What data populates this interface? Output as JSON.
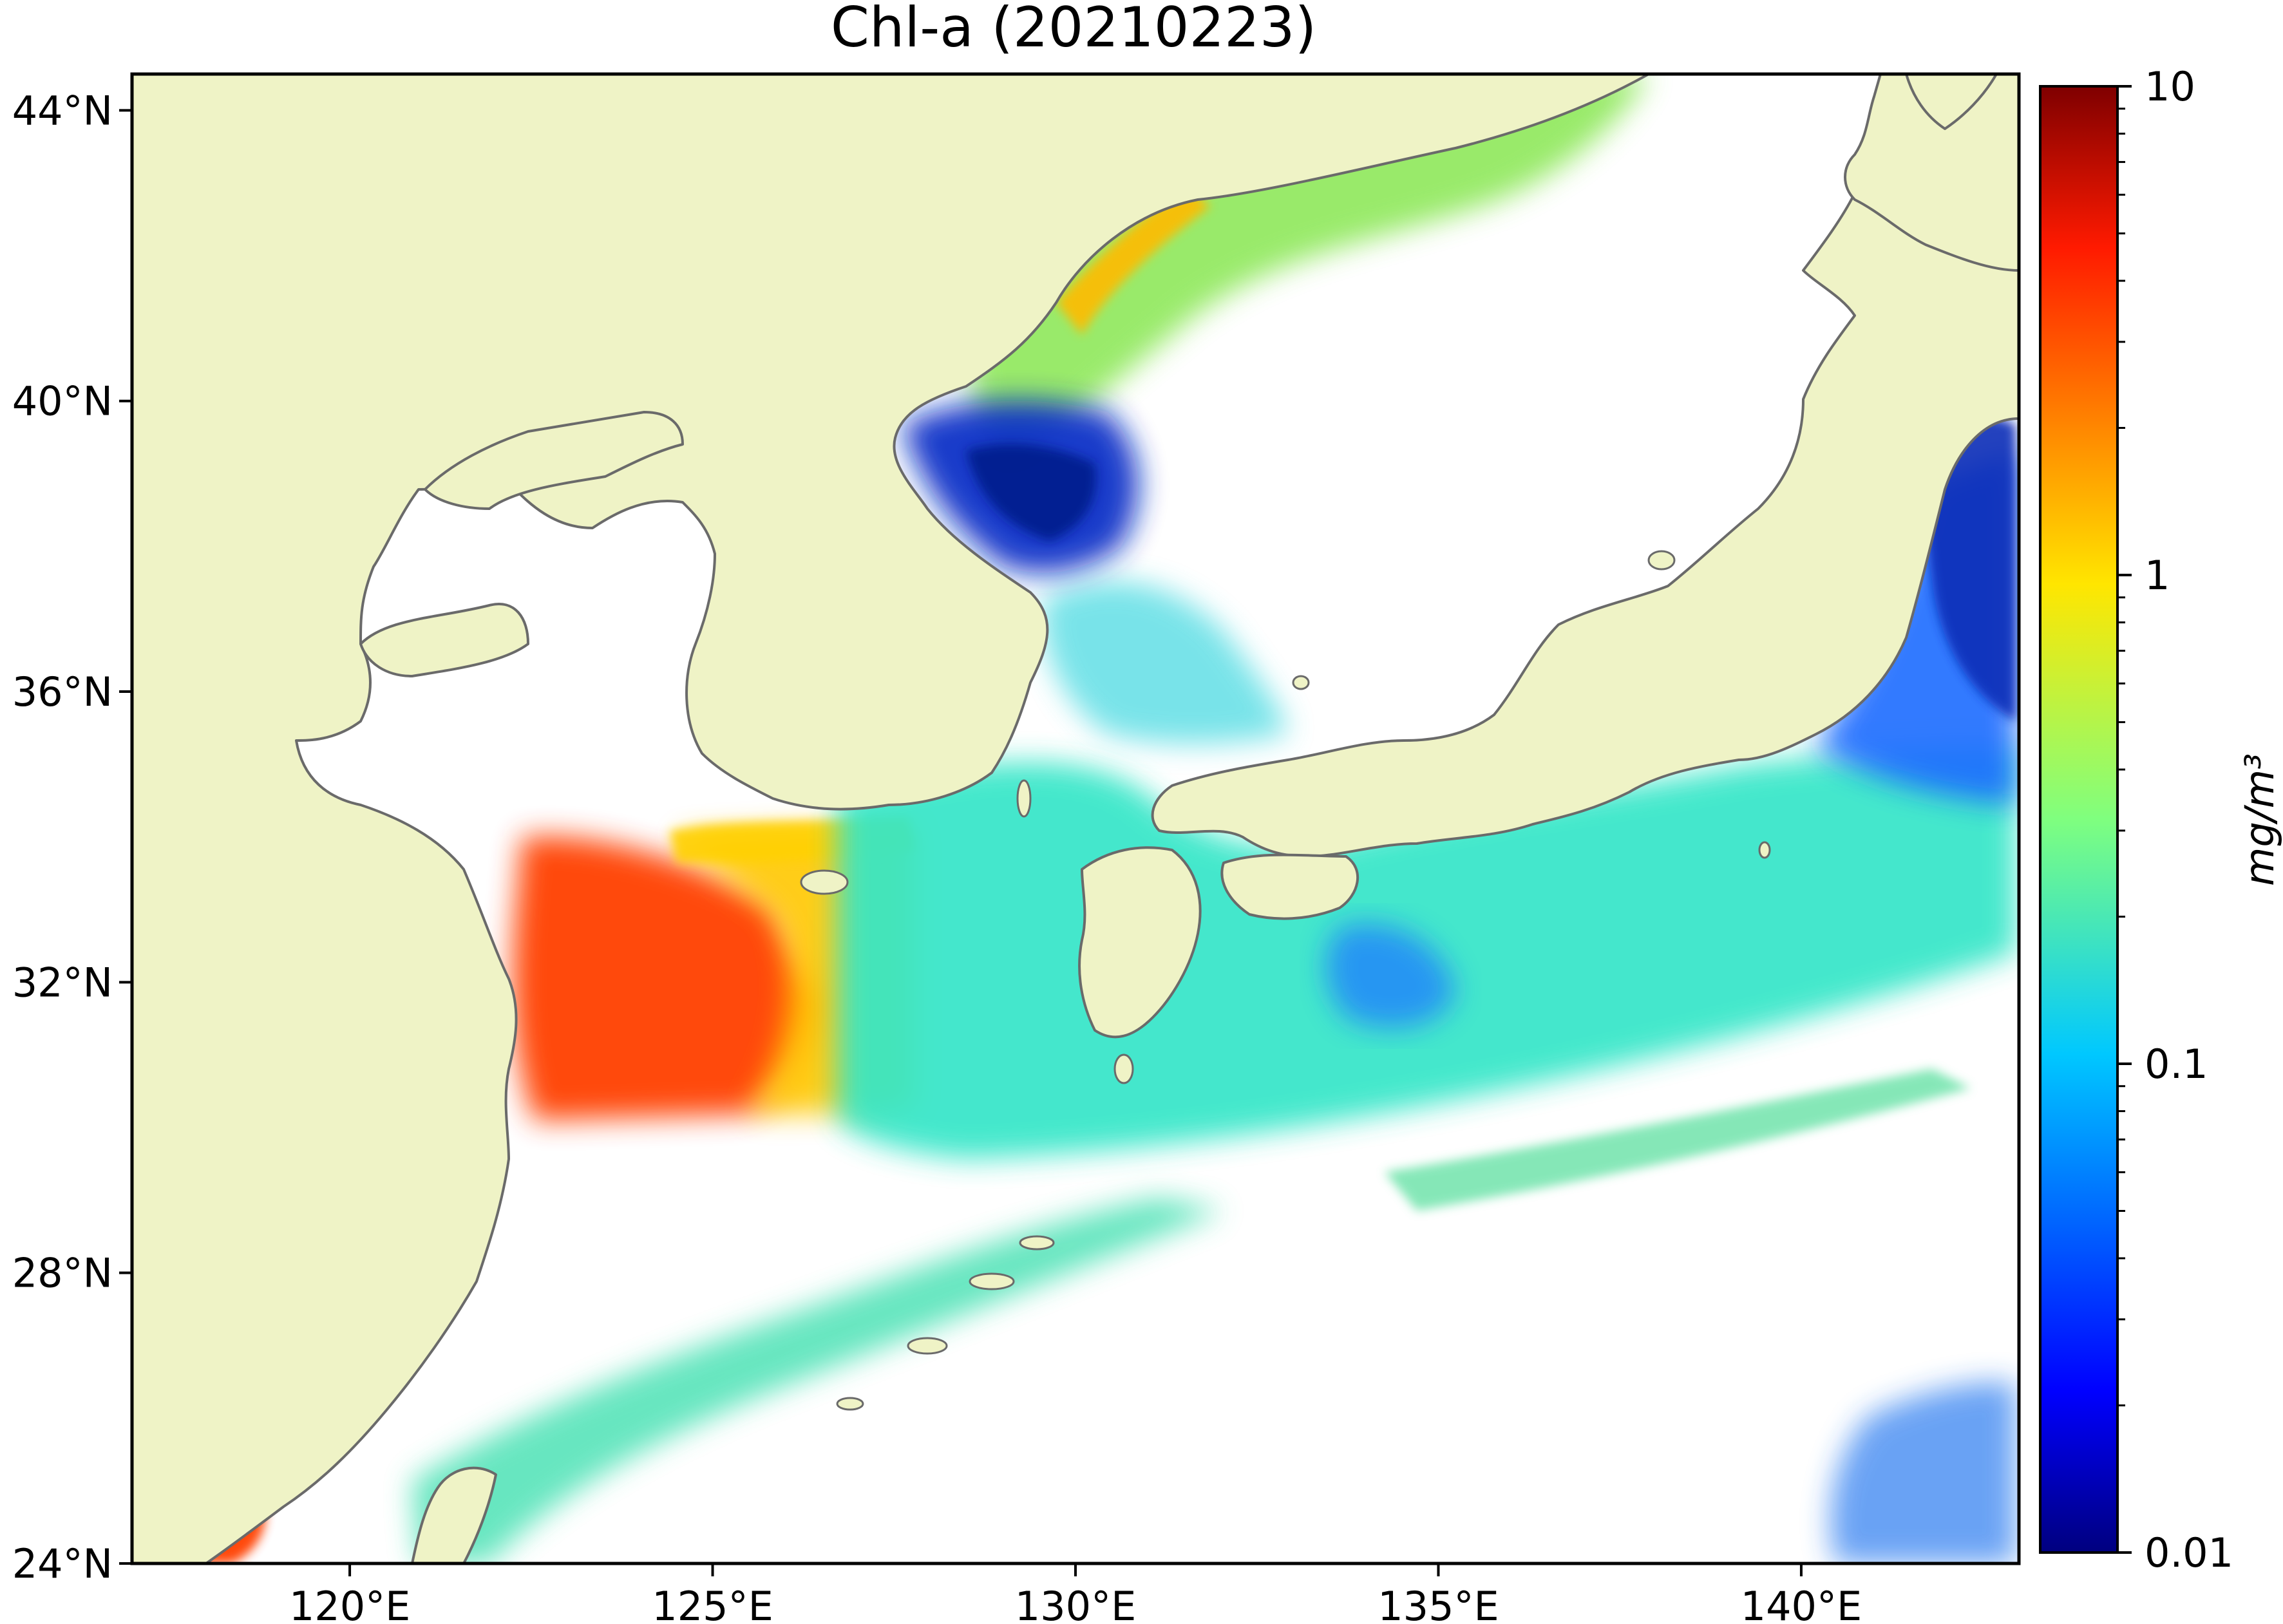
{
  "title": "Chl-a (20210223)",
  "map": {
    "lon_range": [
      117,
      143
    ],
    "lat_range": [
      24,
      44.5
    ],
    "lon_ticks": [
      120,
      125,
      130,
      135,
      140
    ],
    "lat_ticks": [
      24,
      28,
      32,
      36,
      40,
      44
    ],
    "lon_tick_labels": [
      "120°E",
      "125°E",
      "130°E",
      "135°E",
      "140°E"
    ],
    "lat_tick_labels": [
      "24°N",
      "28°N",
      "32°N",
      "36°N",
      "40°N",
      "44°N"
    ],
    "land_color": "#eff3c6",
    "coast_color": "#6a6a6a",
    "no_data_color": "#ffffff"
  },
  "colorbar": {
    "label": "mg/m³",
    "scale": "log",
    "range": [
      0.01,
      10
    ],
    "ticks": [
      10,
      1,
      0.1,
      0.01
    ],
    "tick_labels": [
      "10",
      "1",
      "0.1",
      "0.01"
    ],
    "colormap": "jet",
    "colors": [
      "#00007f",
      "#0000ff",
      "#007fff",
      "#00ffff",
      "#7fff7f",
      "#ffff00",
      "#ff7f00",
      "#ff0000",
      "#7f0000"
    ]
  }
}
